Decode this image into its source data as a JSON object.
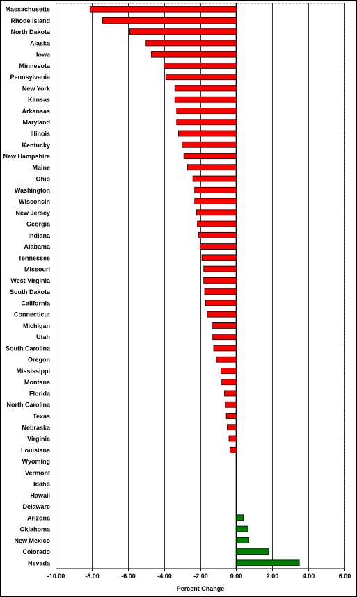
{
  "chart_data": {
    "type": "bar",
    "orientation": "horizontal",
    "xlabel": "Percent Change",
    "ylabel": "",
    "title": "",
    "xlim": [
      -10,
      6
    ],
    "xticks": [
      -10,
      -8,
      -6,
      -4,
      -2,
      0,
      2,
      4,
      6
    ],
    "xtick_labels": [
      "-10.00",
      "-8.00",
      "-6.00",
      "-4.00",
      "-2.00",
      "0.00",
      "2.00",
      "4.00",
      "6.00"
    ],
    "grid": "vertical",
    "legend": "none",
    "colors": {
      "negative": "#ff0000",
      "positive": "#008000",
      "gridline": "#000000",
      "zero_line": "#000000"
    },
    "categories": [
      "Massachusetts",
      "Rhode Island",
      "North Dakota",
      "Alaska",
      "Iowa",
      "Minnesota",
      "Pennsylvania",
      "New York",
      "Kansas",
      "Arkansas",
      "Maryland",
      "Illinois",
      "Kentucky",
      "New Hampshire",
      "Maine",
      "Ohio",
      "Washington",
      "Wisconsin",
      "New Jersey",
      "Georgia",
      "Indiana",
      "Alabama",
      "Tennessee",
      "Missouri",
      "West Virginia",
      "South Dakota",
      "California",
      "Connecticut",
      "Michigan",
      "Utah",
      "South Carolina",
      "Oregon",
      "Mississippi",
      "Montana",
      "Florida",
      "North Carolina",
      "Texas",
      "Nebraska",
      "Virginia",
      "Louisiana",
      "Wyoming",
      "Vermont",
      "Idaho",
      "Hawaii",
      "Delaware",
      "Arizona",
      "Oklahoma",
      "New Mexico",
      "Colorado",
      "Nevada"
    ],
    "values": [
      -8.1,
      -7.4,
      -5.9,
      -5.0,
      -4.7,
      -4.0,
      -3.9,
      -3.4,
      -3.4,
      -3.3,
      -3.3,
      -3.2,
      -3.0,
      -2.9,
      -2.7,
      -2.4,
      -2.3,
      -2.3,
      -2.2,
      -2.15,
      -2.1,
      -2.0,
      -1.9,
      -1.8,
      -1.8,
      -1.75,
      -1.7,
      -1.6,
      -1.35,
      -1.3,
      -1.25,
      -1.1,
      -0.85,
      -0.8,
      -0.65,
      -0.6,
      -0.55,
      -0.5,
      -0.4,
      -0.35,
      0,
      0,
      0,
      0,
      0,
      0.4,
      0.65,
      0.7,
      1.8,
      3.5
    ]
  }
}
